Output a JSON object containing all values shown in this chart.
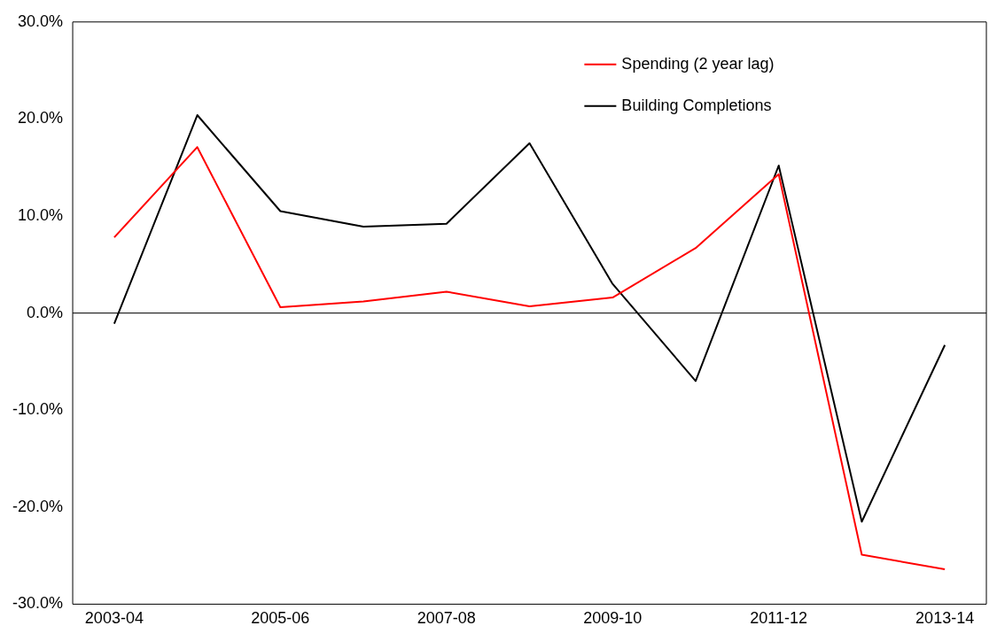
{
  "chart_data": {
    "type": "line",
    "categories": [
      "2003-04",
      null,
      "2005-06",
      null,
      "2007-08",
      null,
      "2009-10",
      null,
      "2011-12",
      null,
      "2013-14"
    ],
    "series": [
      {
        "name": "Spending (2 year lag)",
        "color": "#ff0000",
        "values": [
          7.8,
          17.1,
          0.6,
          1.2,
          2.2,
          0.7,
          1.6,
          6.7,
          14.3,
          -24.9,
          -26.4
        ]
      },
      {
        "name": "Building Completions",
        "color": "#000000",
        "values": [
          -1.1,
          20.4,
          10.5,
          8.9,
          9.2,
          17.5,
          3.0,
          -7.0,
          15.2,
          -21.5,
          -3.3
        ]
      }
    ],
    "ylim": [
      -30,
      30
    ],
    "yticks": [
      {
        "value": -30,
        "label": "-30.0%"
      },
      {
        "value": -20,
        "label": "-20.0%"
      },
      {
        "value": -10,
        "label": "-10.0%"
      },
      {
        "value": 0,
        "label": "0.0%"
      },
      {
        "value": 10,
        "label": "10.0%"
      },
      {
        "value": 20,
        "label": "20.0%"
      },
      {
        "value": 30,
        "label": "30.0%"
      }
    ],
    "ref_lines": [
      {
        "axis": "y",
        "value": 0,
        "color": "#000000"
      }
    ],
    "grid": false,
    "legend": "top right",
    "marker": "none",
    "line_style": "solid"
  }
}
